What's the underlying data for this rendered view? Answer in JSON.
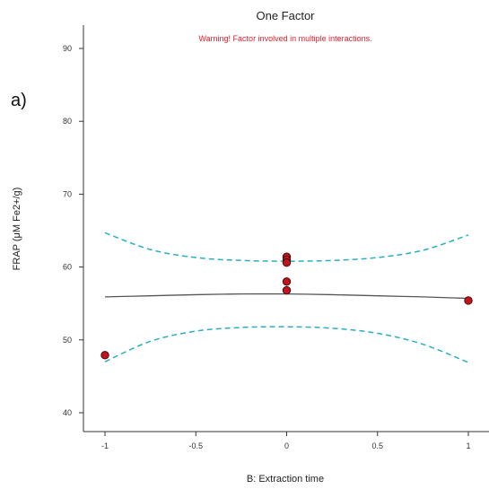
{
  "panel_label": "a)",
  "chart_data": {
    "type": "line",
    "title": "One Factor",
    "annotation": "Warning! Factor involved in multiple interactions.",
    "xlabel": "B: Extraction time",
    "ylabel": "FRAP (μM Fe2+/g)",
    "xlim": [
      -1.2,
      1.2
    ],
    "ylim": [
      37,
      92
    ],
    "x_ticks": [
      -1,
      -0.5,
      0,
      0.5,
      1
    ],
    "x_tick_labels": [
      "-1",
      "-0.5",
      "0",
      "0.5",
      "1"
    ],
    "y_ticks": [
      40,
      50,
      60,
      70,
      80,
      90
    ],
    "y_tick_labels": [
      "40",
      "50",
      "60",
      "70",
      "80",
      "90"
    ],
    "grid": false,
    "series": [
      {
        "style": "solid",
        "x": [
          -1,
          -0.75,
          -0.5,
          -0.25,
          0,
          0.25,
          0.5,
          0.75,
          1
        ],
        "y": [
          55.9,
          56.05,
          56.2,
          56.3,
          56.3,
          56.2,
          56.05,
          55.9,
          55.7
        ]
      },
      {
        "style": "dashed",
        "x": [
          -1,
          -0.75,
          -0.5,
          -0.25,
          0,
          0.25,
          0.5,
          0.75,
          1
        ],
        "y": [
          64.7,
          62.4,
          61.3,
          60.9,
          60.8,
          60.9,
          61.3,
          62.3,
          64.4
        ]
      },
      {
        "style": "dashed",
        "x": [
          -1,
          -0.75,
          -0.5,
          -0.25,
          0,
          0.25,
          0.5,
          0.75,
          1
        ],
        "y": [
          47.0,
          49.8,
          51.2,
          51.7,
          51.8,
          51.6,
          50.9,
          49.4,
          46.9
        ]
      },
      {
        "style": "points",
        "x": [
          -1,
          0,
          0,
          0,
          0,
          0,
          1
        ],
        "y": [
          47.9,
          61.4,
          61.0,
          60.6,
          58.0,
          56.8,
          55.4
        ]
      }
    ]
  },
  "colors": {
    "fit_line": "#555555",
    "ci_band": "#2ab0c0",
    "points_fill": "#c0141e",
    "points_stroke": "#4a0a0a",
    "warning": "#e8202a",
    "axis": "#333333"
  }
}
